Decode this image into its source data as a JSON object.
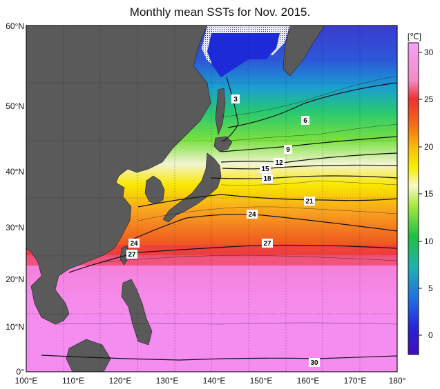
{
  "title": "Monthly mean SSTs for Nov. 2015.",
  "unit": "[℃]",
  "lat_labels": [
    "60°N",
    "50°N",
    "40°N",
    "30°N",
    "20°N",
    "10°N",
    "0°"
  ],
  "lon_labels": [
    "100°E",
    "110°E",
    "120°E",
    "130°E",
    "140°E",
    "150°E",
    "160°E",
    "170°E",
    "180°"
  ],
  "colorbar_ticks": [
    "30",
    "25",
    "20",
    "15",
    "10",
    "5",
    "0"
  ],
  "contour_labels": [
    "3",
    "6",
    "9",
    "12",
    "15",
    "18",
    "21",
    "24",
    "27",
    "24",
    "27",
    "30"
  ],
  "colors": {
    "land": "#5a5a5a",
    "sea_cold": "#2a2ad8",
    "sea_warm": "#f58cf0",
    "red": "#e8262a"
  }
}
